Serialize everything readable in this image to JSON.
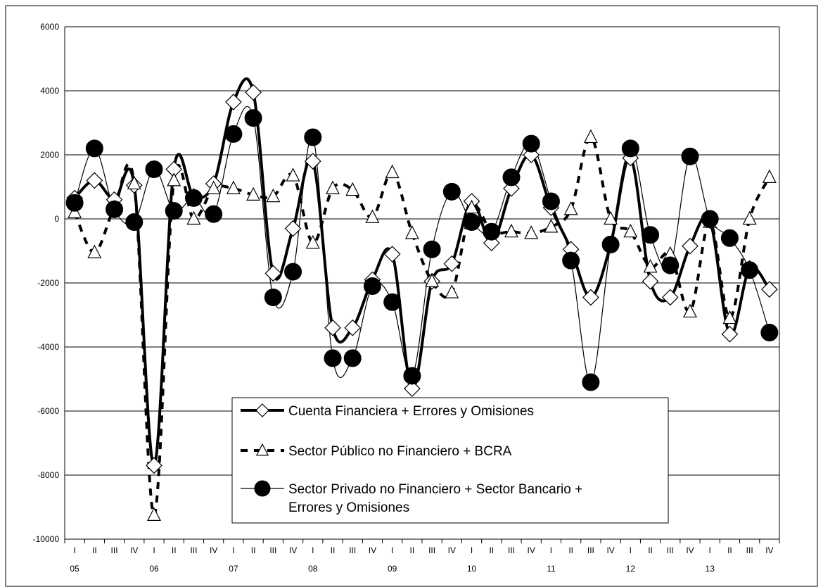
{
  "chart_data": {
    "type": "line",
    "title": "",
    "xlabel": "",
    "ylabel": "",
    "ylim": [
      -10000,
      6000
    ],
    "yticks": [
      6000,
      4000,
      2000,
      0,
      -2000,
      -4000,
      -6000,
      -8000,
      -10000
    ],
    "grid": true,
    "legend_position": "bottom-center",
    "x": [
      "I",
      "II",
      "III",
      "IV",
      "I",
      "II",
      "III",
      "IV",
      "I",
      "II",
      "III",
      "IV",
      "I",
      "II",
      "III",
      "IV",
      "I",
      "II",
      "III",
      "IV",
      "I",
      "II",
      "III",
      "IV",
      "I",
      "II",
      "III",
      "IV",
      "I",
      "II",
      "III",
      "IV",
      "I",
      "II",
      "III",
      "IV"
    ],
    "year_labels": [
      {
        "label": "05",
        "index": 0
      },
      {
        "label": "06",
        "index": 4
      },
      {
        "label": "07",
        "index": 8
      },
      {
        "label": "08",
        "index": 12
      },
      {
        "label": "09",
        "index": 16
      },
      {
        "label": "10",
        "index": 20
      },
      {
        "label": "11",
        "index": 24
      },
      {
        "label": "12",
        "index": 28
      },
      {
        "label": "13",
        "index": 32
      }
    ],
    "series": [
      {
        "name": "Cuenta Financiera + Errores y Omisiones",
        "style": "thick-solid",
        "marker": "diamond",
        "color": "#000000",
        "values": [
          650,
          1200,
          600,
          1050,
          -7700,
          1550,
          700,
          1100,
          3650,
          3950,
          -1700,
          -300,
          1800,
          -3400,
          -3400,
          -1900,
          -1100,
          -5300,
          -1950,
          -1400,
          550,
          -750,
          950,
          2000,
          350,
          -950,
          -2450,
          -800,
          1900,
          -1950,
          -2450,
          -850,
          -50,
          -3600,
          -1550,
          -2200
        ]
      },
      {
        "name": "Sector Público no Financiero + BCRA",
        "style": "thick-dashed",
        "marker": "triangle",
        "color": "#000000",
        "values": [
          200,
          -1050,
          350,
          1100,
          -9250,
          1200,
          0,
          950,
          950,
          750,
          700,
          1350,
          -750,
          950,
          900,
          50,
          1450,
          -450,
          -1950,
          -2300,
          350,
          -400,
          -400,
          -450,
          -250,
          300,
          2550,
          0,
          -400,
          -1500,
          -1100,
          -2900,
          -100,
          -3100,
          0,
          1300
        ]
      },
      {
        "name": "Sector Privado no Financiero + Sector Bancario + Errores y Omisiones",
        "style": "thin-solid",
        "marker": "circle",
        "color": "#000000",
        "values": [
          500,
          2200,
          300,
          -100,
          1550,
          250,
          650,
          150,
          2650,
          3150,
          -2450,
          -1650,
          2550,
          -4350,
          -4350,
          -2100,
          -2600,
          -4900,
          -950,
          850,
          -100,
          -400,
          1300,
          2350,
          550,
          -1300,
          -5100,
          -800,
          2200,
          -500,
          -1450,
          1950,
          0,
          -600,
          -1600,
          -3550
        ]
      }
    ]
  }
}
